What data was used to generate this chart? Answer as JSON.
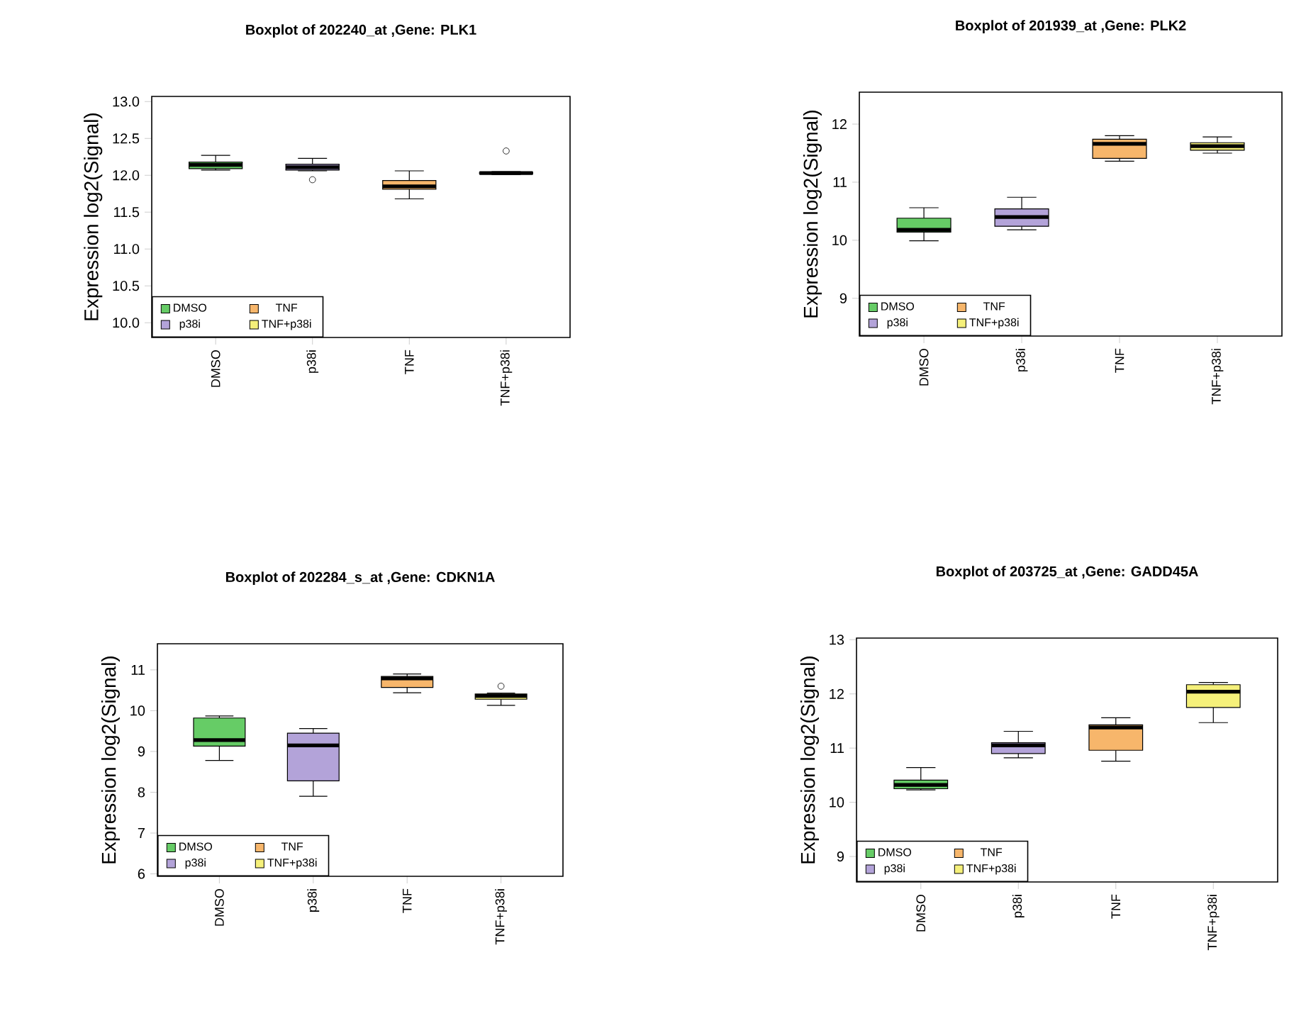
{
  "chart_data": [
    {
      "type": "box",
      "title": "Boxplot of 202240_at ,Gene: PLK1",
      "ylabel": "Expression log2(Signal)",
      "categories": [
        "DMSO",
        "p38i",
        "TNF",
        "TNF+p38i"
      ],
      "series": [
        {
          "name": "DMSO",
          "color": "#66cc66",
          "boxes": [
            {
              "low": 12.07,
              "q1": 12.09,
              "median": 12.14,
              "q3": 12.18,
              "high": 12.27
            },
            null,
            null,
            null
          ]
        },
        {
          "name": "p38i",
          "color": "#b3a3d9",
          "boxes": [
            null,
            {
              "low": 12.06,
              "q1": 12.07,
              "median": 12.11,
              "q3": 12.15,
              "high": 12.23,
              "outliers": [
                11.94
              ]
            },
            null,
            null
          ]
        },
        {
          "name": "TNF",
          "color": "#f7b66b",
          "boxes": [
            null,
            null,
            {
              "low": 11.68,
              "q1": 11.81,
              "median": 11.85,
              "q3": 11.93,
              "high": 12.06
            },
            null
          ]
        },
        {
          "name": "TNF+p38i",
          "color": "#f5f07a",
          "boxes": [
            null,
            null,
            null,
            {
              "low": 12.01,
              "q1": 12.02,
              "median": 12.03,
              "q3": 12.04,
              "high": 12.05,
              "outliers": [
                12.33
              ]
            }
          ]
        }
      ],
      "ylim": [
        9.8,
        13.07
      ],
      "yticks": [
        {
          "value": 10,
          "label": "10.0"
        },
        {
          "value": 10.5,
          "label": "10.5"
        },
        {
          "value": 11,
          "label": "11.0"
        },
        {
          "value": 11.5,
          "label": "11.5"
        },
        {
          "value": 12,
          "label": "12.0"
        },
        {
          "value": 12.5,
          "label": "12.5"
        },
        {
          "value": 13,
          "label": "13.0"
        }
      ],
      "legend": "bottom left"
    },
    {
      "type": "box",
      "title": "Boxplot of 201939_at ,Gene: PLK2",
      "ylabel": "Expression log2(Signal)",
      "categories": [
        "DMSO",
        "p38i",
        "TNF",
        "TNF+p38i"
      ],
      "series": [
        {
          "name": "DMSO",
          "color": "#66cc66",
          "boxes": [
            {
              "low": 9.99,
              "q1": 10.14,
              "median": 10.18,
              "q3": 10.38,
              "high": 10.56
            },
            null,
            null,
            null
          ]
        },
        {
          "name": "p38i",
          "color": "#b3a3d9",
          "boxes": [
            null,
            {
              "low": 10.18,
              "q1": 10.24,
              "median": 10.4,
              "q3": 10.54,
              "high": 10.74
            },
            null,
            null
          ]
        },
        {
          "name": "TNF",
          "color": "#f7b66b",
          "boxes": [
            null,
            null,
            {
              "low": 11.36,
              "q1": 11.41,
              "median": 11.66,
              "q3": 11.74,
              "high": 11.8
            },
            null
          ]
        },
        {
          "name": "TNF+p38i",
          "color": "#f5f07a",
          "boxes": [
            null,
            null,
            null,
            {
              "low": 11.5,
              "q1": 11.55,
              "median": 11.62,
              "q3": 11.68,
              "high": 11.78
            }
          ]
        }
      ],
      "ylim": [
        8.35,
        12.55
      ],
      "yticks": [
        9,
        10,
        11,
        12
      ],
      "legend": "bottom left"
    },
    {
      "type": "box",
      "title": "Boxplot of 202284_s_at ,Gene: CDKN1A",
      "ylabel": "Expression log2(Signal)",
      "categories": [
        "DMSO",
        "p38i",
        "TNF",
        "TNF+p38i"
      ],
      "series": [
        {
          "name": "DMSO",
          "color": "#66cc66",
          "boxes": [
            {
              "low": 8.78,
              "q1": 9.13,
              "median": 9.28,
              "q3": 9.82,
              "high": 9.87
            },
            null,
            null,
            null
          ]
        },
        {
          "name": "p38i",
          "color": "#b3a3d9",
          "boxes": [
            null,
            {
              "low": 7.9,
              "q1": 8.28,
              "median": 9.15,
              "q3": 9.45,
              "high": 9.56
            },
            null,
            null
          ]
        },
        {
          "name": "TNF",
          "color": "#f7b66b",
          "boxes": [
            null,
            null,
            {
              "low": 10.44,
              "q1": 10.57,
              "median": 10.79,
              "q3": 10.84,
              "high": 10.9
            },
            null
          ]
        },
        {
          "name": "TNF+p38i",
          "color": "#f5f07a",
          "boxes": [
            null,
            null,
            null,
            {
              "low": 10.13,
              "q1": 10.28,
              "median": 10.36,
              "q3": 10.41,
              "high": 10.43,
              "outliers": [
                10.6
              ]
            }
          ]
        }
      ],
      "ylim": [
        5.94,
        11.64
      ],
      "yticks": [
        6,
        7,
        8,
        9,
        10,
        11
      ],
      "legend": "bottom left"
    },
    {
      "type": "box",
      "title": "Boxplot of 203725_at ,Gene: GADD45A",
      "ylabel": "Expression log2(Signal)",
      "categories": [
        "DMSO",
        "p38i",
        "TNF",
        "TNF+p38i"
      ],
      "series": [
        {
          "name": "DMSO",
          "color": "#66cc66",
          "boxes": [
            {
              "low": 10.23,
              "q1": 10.25,
              "median": 10.32,
              "q3": 10.41,
              "high": 10.64
            },
            null,
            null,
            null
          ]
        },
        {
          "name": "p38i",
          "color": "#b3a3d9",
          "boxes": [
            null,
            {
              "low": 10.82,
              "q1": 10.9,
              "median": 11.05,
              "q3": 11.1,
              "high": 11.31
            },
            null,
            null
          ]
        },
        {
          "name": "TNF",
          "color": "#f7b66b",
          "boxes": [
            null,
            null,
            {
              "low": 10.76,
              "q1": 10.96,
              "median": 11.38,
              "q3": 11.43,
              "high": 11.56
            },
            null
          ]
        },
        {
          "name": "TNF+p38i",
          "color": "#f5f07a",
          "boxes": [
            null,
            null,
            null,
            {
              "low": 11.47,
              "q1": 11.75,
              "median": 12.04,
              "q3": 12.17,
              "high": 12.21
            }
          ]
        }
      ],
      "ylim": [
        8.53,
        13.03
      ],
      "yticks": [
        9,
        10,
        11,
        12,
        13
      ],
      "legend": "bottom left"
    }
  ]
}
